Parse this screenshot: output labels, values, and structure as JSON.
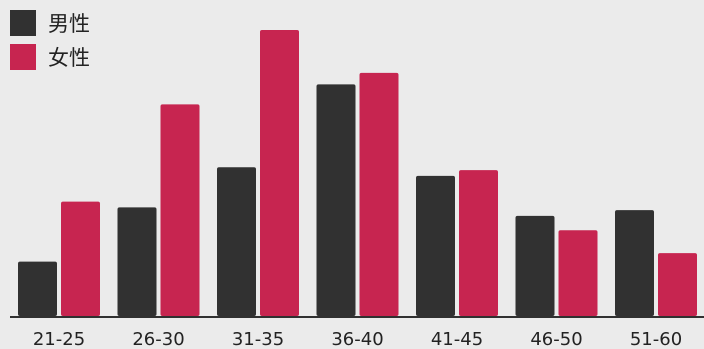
{
  "colors": {
    "male": "#313131",
    "female": "#c72550",
    "axis": "#303030",
    "background": "#ebebeb",
    "tick_text": "#222222"
  },
  "legend": {
    "position": "top-left",
    "items": [
      "男性",
      "女性"
    ]
  },
  "chart_data": {
    "type": "bar",
    "categories": [
      "21-25",
      "26-30",
      "31-35",
      "36-40",
      "41-45",
      "46-50",
      "51-60"
    ],
    "series": [
      {
        "name": "男性",
        "values": [
          19,
          38,
          52,
          81,
          49,
          35,
          37
        ]
      },
      {
        "name": "女性",
        "values": [
          40,
          74,
          100,
          85,
          51,
          30,
          22
        ]
      }
    ],
    "ylim": [
      0,
      100
    ],
    "grid": false,
    "title": "",
    "xlabel": "",
    "ylabel": ""
  }
}
